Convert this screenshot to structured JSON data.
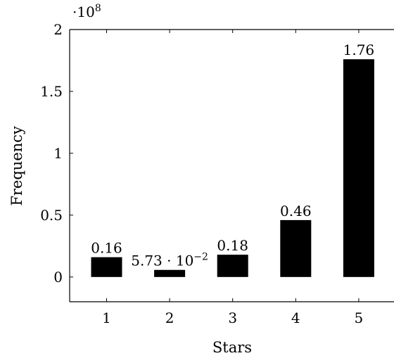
{
  "chart_data": {
    "type": "bar",
    "categories": [
      "1",
      "2",
      "3",
      "4",
      "5"
    ],
    "values": [
      0.16,
      0.0573,
      0.18,
      0.46,
      1.76
    ],
    "data_labels": [
      "0.16",
      "5.73 · 10",
      "0.18",
      "0.46",
      "1.76"
    ],
    "data_label_exponents": [
      "",
      "−2",
      "",
      "",
      ""
    ],
    "xlabel": "Stars",
    "ylabel": "Frequency",
    "y_scale_base": "·10",
    "y_scale_exponent": "8",
    "ylim": [
      -0.2,
      2.0
    ],
    "yticks": [
      0,
      0.5,
      1,
      1.5,
      2
    ],
    "ytick_labels": [
      "0",
      "0.5",
      "1",
      "1.5",
      "2"
    ],
    "grid": false,
    "legend": "none",
    "bar_color": "#000000"
  }
}
